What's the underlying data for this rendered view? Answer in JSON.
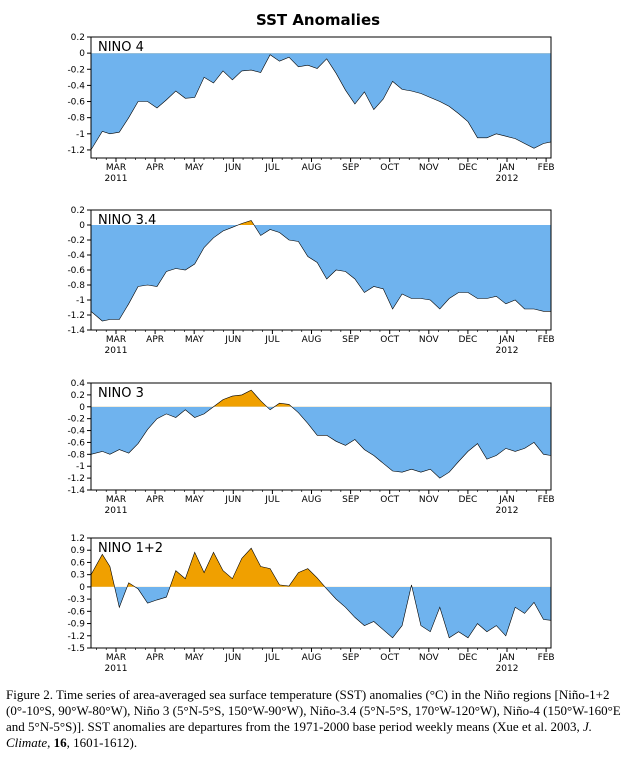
{
  "title": "SST Anomalies",
  "colors": {
    "negative": "#6fb3ee",
    "positive": "#f0a000",
    "line": "#000000",
    "background": "#ffffff"
  },
  "x_ticks": [
    "MAR",
    "APR",
    "MAY",
    "JUN",
    "JUL",
    "AUG",
    "SEP",
    "OCT",
    "NOV",
    "DEC",
    "JAN",
    "FEB"
  ],
  "x_year_labels": [
    {
      "after": "MAR",
      "text": "2011"
    },
    {
      "after": "JAN",
      "text": "2012"
    }
  ],
  "chart_data": [
    {
      "type": "area",
      "title": "NINO 4",
      "ylim": [
        -1.3,
        0.2
      ],
      "yticks": [
        "0.2",
        "0",
        "-0.2",
        "-0.4",
        "-0.6",
        "-0.8",
        "-1",
        "-1.2"
      ],
      "ytick_values": [
        0.2,
        0,
        -0.2,
        -0.4,
        -0.6,
        -0.8,
        -1,
        -1.2
      ],
      "x_months": [
        0.0,
        0.3,
        0.5,
        0.75,
        1.0,
        1.25,
        1.5,
        1.75,
        2.0,
        2.25,
        2.5,
        2.75,
        3.0,
        3.25,
        3.5,
        3.75,
        4.0,
        4.25,
        4.5,
        4.75,
        5.0,
        5.25,
        5.5,
        5.75,
        6.0,
        6.25,
        6.5,
        6.75,
        7.0,
        7.25,
        7.5,
        7.75,
        8.0,
        8.25,
        8.5,
        8.75,
        9.0,
        9.25,
        9.5,
        9.75,
        10.0,
        10.25,
        10.5,
        10.75,
        11.0,
        11.25,
        11.5,
        11.75,
        12.0,
        12.2
      ],
      "values": [
        -1.2,
        -0.97,
        -1.0,
        -0.98,
        -0.8,
        -0.6,
        -0.6,
        -0.68,
        -0.58,
        -0.47,
        -0.56,
        -0.55,
        -0.3,
        -0.37,
        -0.22,
        -0.33,
        -0.22,
        -0.21,
        -0.24,
        -0.02,
        -0.1,
        -0.05,
        -0.17,
        -0.15,
        -0.19,
        -0.07,
        -0.25,
        -0.46,
        -0.63,
        -0.48,
        -0.7,
        -0.57,
        -0.35,
        -0.45,
        -0.47,
        -0.5,
        -0.55,
        -0.6,
        -0.66,
        -0.75,
        -0.85,
        -1.05,
        -1.05,
        -1.0,
        -1.03,
        -1.06,
        -1.12,
        -1.18,
        -1.12,
        -1.1
      ]
    },
    {
      "type": "area",
      "title": "NINO 3.4",
      "ylim": [
        -1.4,
        0.2
      ],
      "yticks": [
        "0.2",
        "0",
        "-0.2",
        "-0.4",
        "-0.6",
        "-0.8",
        "-1",
        "-1.2",
        "-1.4"
      ],
      "ytick_values": [
        0.2,
        0,
        -0.2,
        -0.4,
        -0.6,
        -0.8,
        -1,
        -1.2,
        -1.4
      ],
      "x_months": [
        0.0,
        0.3,
        0.5,
        0.75,
        1.0,
        1.25,
        1.5,
        1.75,
        2.0,
        2.25,
        2.5,
        2.75,
        3.0,
        3.25,
        3.5,
        3.75,
        4.0,
        4.25,
        4.5,
        4.75,
        5.0,
        5.25,
        5.5,
        5.75,
        6.0,
        6.25,
        6.5,
        6.75,
        7.0,
        7.25,
        7.5,
        7.75,
        8.0,
        8.25,
        8.5,
        8.75,
        9.0,
        9.25,
        9.5,
        9.75,
        10.0,
        10.25,
        10.5,
        10.75,
        11.0,
        11.25,
        11.5,
        11.75,
        12.0,
        12.2
      ],
      "values": [
        -1.15,
        -1.28,
        -1.26,
        -1.26,
        -1.05,
        -0.82,
        -0.8,
        -0.82,
        -0.62,
        -0.58,
        -0.6,
        -0.52,
        -0.3,
        -0.17,
        -0.08,
        -0.03,
        0.02,
        0.06,
        -0.14,
        -0.06,
        -0.1,
        -0.2,
        -0.22,
        -0.42,
        -0.5,
        -0.72,
        -0.6,
        -0.62,
        -0.72,
        -0.9,
        -0.82,
        -0.85,
        -1.12,
        -0.92,
        -0.98,
        -0.98,
        -1.0,
        -1.12,
        -0.98,
        -0.9,
        -0.9,
        -0.98,
        -0.98,
        -0.95,
        -1.05,
        -1.0,
        -1.12,
        -1.12,
        -1.15,
        -1.15
      ]
    },
    {
      "type": "area",
      "title": "NINO 3",
      "ylim": [
        -1.4,
        0.4
      ],
      "yticks": [
        "0.4",
        "0.2",
        "0",
        "-0.2",
        "-0.4",
        "-0.6",
        "-0.8",
        "-1",
        "-1.2",
        "-1.4"
      ],
      "ytick_values": [
        0.4,
        0.2,
        0,
        -0.2,
        -0.4,
        -0.6,
        -0.8,
        -1,
        -1.2,
        -1.4
      ],
      "x_months": [
        0.0,
        0.3,
        0.5,
        0.75,
        1.0,
        1.25,
        1.5,
        1.75,
        2.0,
        2.25,
        2.5,
        2.75,
        3.0,
        3.25,
        3.5,
        3.75,
        4.0,
        4.25,
        4.5,
        4.75,
        5.0,
        5.25,
        5.5,
        5.75,
        6.0,
        6.25,
        6.5,
        6.75,
        7.0,
        7.25,
        7.5,
        7.75,
        8.0,
        8.25,
        8.5,
        8.75,
        9.0,
        9.25,
        9.5,
        9.75,
        10.0,
        10.25,
        10.5,
        10.75,
        11.0,
        11.25,
        11.5,
        11.75,
        12.0,
        12.2
      ],
      "values": [
        -0.8,
        -0.75,
        -0.8,
        -0.72,
        -0.78,
        -0.62,
        -0.38,
        -0.2,
        -0.12,
        -0.18,
        -0.05,
        -0.18,
        -0.12,
        0.0,
        0.12,
        0.18,
        0.2,
        0.28,
        0.1,
        -0.05,
        0.06,
        0.04,
        -0.1,
        -0.28,
        -0.48,
        -0.48,
        -0.58,
        -0.65,
        -0.55,
        -0.72,
        -0.82,
        -0.95,
        -1.08,
        -1.1,
        -1.05,
        -1.1,
        -1.05,
        -1.2,
        -1.1,
        -0.92,
        -0.75,
        -0.62,
        -0.88,
        -0.82,
        -0.7,
        -0.75,
        -0.7,
        -0.6,
        -0.8,
        -0.82
      ]
    },
    {
      "type": "area",
      "title": "NINO 1+2",
      "ylim": [
        -1.5,
        1.2
      ],
      "yticks": [
        "1.2",
        "0.9",
        "0.6",
        "0.3",
        "0",
        "-0.3",
        "-0.6",
        "-0.9",
        "-1.2",
        "-1.5"
      ],
      "ytick_values": [
        1.2,
        0.9,
        0.6,
        0.3,
        0,
        -0.3,
        -0.6,
        -0.9,
        -1.2,
        -1.5
      ],
      "x_months": [
        0.0,
        0.3,
        0.5,
        0.75,
        1.0,
        1.25,
        1.5,
        1.75,
        2.0,
        2.25,
        2.5,
        2.75,
        3.0,
        3.25,
        3.5,
        3.75,
        4.0,
        4.25,
        4.5,
        4.75,
        5.0,
        5.25,
        5.5,
        5.75,
        6.0,
        6.25,
        6.5,
        6.75,
        7.0,
        7.25,
        7.5,
        7.75,
        8.0,
        8.25,
        8.5,
        8.75,
        9.0,
        9.25,
        9.5,
        9.75,
        10.0,
        10.25,
        10.5,
        10.75,
        11.0,
        11.25,
        11.5,
        11.75,
        12.0,
        12.2
      ],
      "values": [
        0.3,
        0.8,
        0.5,
        -0.5,
        0.1,
        -0.05,
        -0.4,
        -0.32,
        -0.25,
        0.4,
        0.2,
        0.85,
        0.35,
        0.85,
        0.4,
        0.2,
        0.7,
        0.95,
        0.5,
        0.45,
        0.05,
        0.02,
        0.35,
        0.45,
        0.22,
        -0.05,
        -0.3,
        -0.5,
        -0.75,
        -0.95,
        -0.85,
        -1.05,
        -1.25,
        -0.95,
        0.05,
        -0.95,
        -1.1,
        -0.5,
        -1.25,
        -1.1,
        -1.25,
        -0.9,
        -1.1,
        -0.95,
        -1.2,
        -0.5,
        -0.65,
        -0.38,
        -0.8,
        -0.82
      ]
    }
  ],
  "caption": {
    "p1": "Figure 2. Time series of area-averaged sea surface temperature (SST) anomalies (°C) in the Niño regions [Niño-1+2 (0°-10°S, 90°W-80°W), Niño 3 (5°N-5°S, 150°W-90°W), Niño-3.4 (5°N-5°S, 170°W-120°W), Niño-4 (150°W-160°E and 5°N-5°S)]. SST anomalies are departures from the 1971-2000 base period weekly means (Xue et al. 2003, ",
    "journal": "J. Climate",
    "comma": ", ",
    "volume": "16",
    "pages": ", 1601-1612)."
  }
}
